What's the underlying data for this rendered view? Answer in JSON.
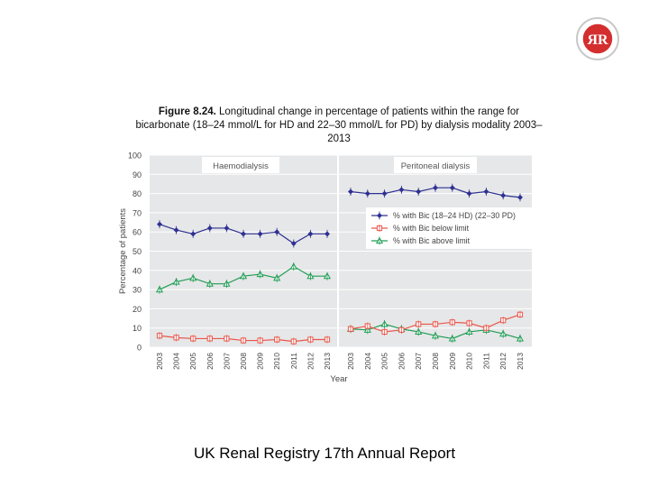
{
  "logo": {
    "text": "ЯR",
    "icon": "renal-registry-seal-icon"
  },
  "figure": {
    "label": "Figure 8.24.",
    "title_rest": " Longitudinal change in percentage of patients within the range for bicarbonate (18–24 mmol/L for HD and 22–30 mmol/L for PD) by dialysis modality 2003–2013"
  },
  "footer": "UK Renal Registry 17th Annual Report",
  "chart_data": {
    "type": "line",
    "ylabel": "Percentage of patients",
    "xlabel": "Year",
    "ylim": [
      0,
      100
    ],
    "yticks": [
      0,
      10,
      20,
      30,
      40,
      50,
      60,
      70,
      80,
      90,
      100
    ],
    "colors": {
      "within": "#2e3192",
      "below": "#e8574b",
      "above": "#1f9d55"
    },
    "legend": [
      {
        "key": "within",
        "label": "% with Bic (18–24 HD) (22–30 PD)"
      },
      {
        "key": "below",
        "label": "% with Bic below limit"
      },
      {
        "key": "above",
        "label": "% with Bic above limit"
      }
    ],
    "panels": [
      {
        "name": "Haemodialysis",
        "x": [
          "2003",
          "2004",
          "2005",
          "2006",
          "2007",
          "2008",
          "2009",
          "2010",
          "2011",
          "2012",
          "2013"
        ],
        "within": [
          64,
          61,
          59,
          62,
          62,
          59,
          59,
          60,
          54,
          59,
          59
        ],
        "below": [
          6,
          5,
          4.5,
          4.5,
          4.5,
          3.5,
          3.5,
          4,
          3,
          4,
          4
        ],
        "above": [
          30,
          34,
          36,
          33,
          33,
          37,
          38,
          36,
          42,
          37,
          37
        ]
      },
      {
        "name": "Peritoneal dialysis",
        "x": [
          "2003",
          "2004",
          "2005",
          "2006",
          "2007",
          "2008",
          "2009",
          "2010",
          "2011",
          "2012",
          "2013"
        ],
        "within": [
          81,
          80,
          80,
          82,
          81,
          83,
          83,
          80,
          81,
          79,
          78
        ],
        "below": [
          9.5,
          11,
          8,
          9,
          12,
          12,
          13,
          12.5,
          10,
          14,
          17
        ],
        "above": [
          9.5,
          9,
          12,
          9.5,
          8,
          6,
          4.5,
          8,
          9,
          7,
          4.5
        ]
      }
    ]
  }
}
